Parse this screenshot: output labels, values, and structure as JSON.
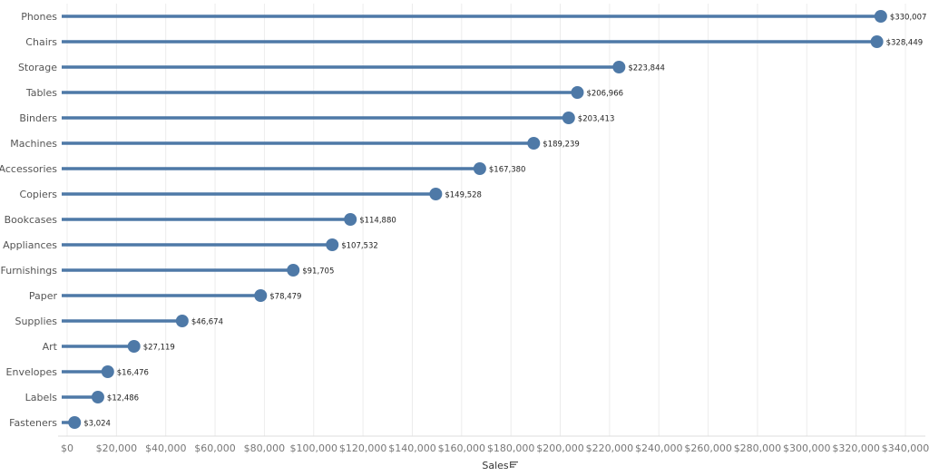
{
  "chart_data": {
    "type": "lollipop",
    "categories": [
      "Phones",
      "Chairs",
      "Storage",
      "Tables",
      "Binders",
      "Machines",
      "Accessories",
      "Copiers",
      "Bookcases",
      "Appliances",
      "Furnishings",
      "Paper",
      "Supplies",
      "Art",
      "Envelopes",
      "Labels",
      "Fasteners"
    ],
    "values": [
      330007,
      328449,
      223844,
      206966,
      203413,
      189239,
      167380,
      149528,
      114880,
      107532,
      91705,
      78479,
      46674,
      27119,
      16476,
      12486,
      3024
    ],
    "value_labels": [
      "$330,007",
      "$328,449",
      "$223,844",
      "$206,966",
      "$203,413",
      "$189,239",
      "$167,380",
      "$149,528",
      "$114,880",
      "$107,532",
      "$91,705",
      "$78,479",
      "$46,674",
      "$27,119",
      "$16,476",
      "$12,486",
      "$3,024"
    ],
    "xlabel": "Sales",
    "xlabel_icon": "sort-descending-icon",
    "xlim": [
      0,
      340000
    ],
    "xticks": [
      0,
      20000,
      40000,
      60000,
      80000,
      100000,
      120000,
      140000,
      160000,
      180000,
      200000,
      220000,
      240000,
      260000,
      280000,
      300000,
      320000,
      340000
    ],
    "xtick_labels": [
      "$0",
      "$20,000",
      "$40,000",
      "$60,000",
      "$80,000",
      "$100,000",
      "$120,000",
      "$140,000",
      "$160,000",
      "$180,000",
      "$200,000",
      "$220,000",
      "$240,000",
      "$260,000",
      "$280,000",
      "$300,000",
      "$320,000",
      "$340,000"
    ],
    "grid": true,
    "color": "#4e79a7"
  }
}
